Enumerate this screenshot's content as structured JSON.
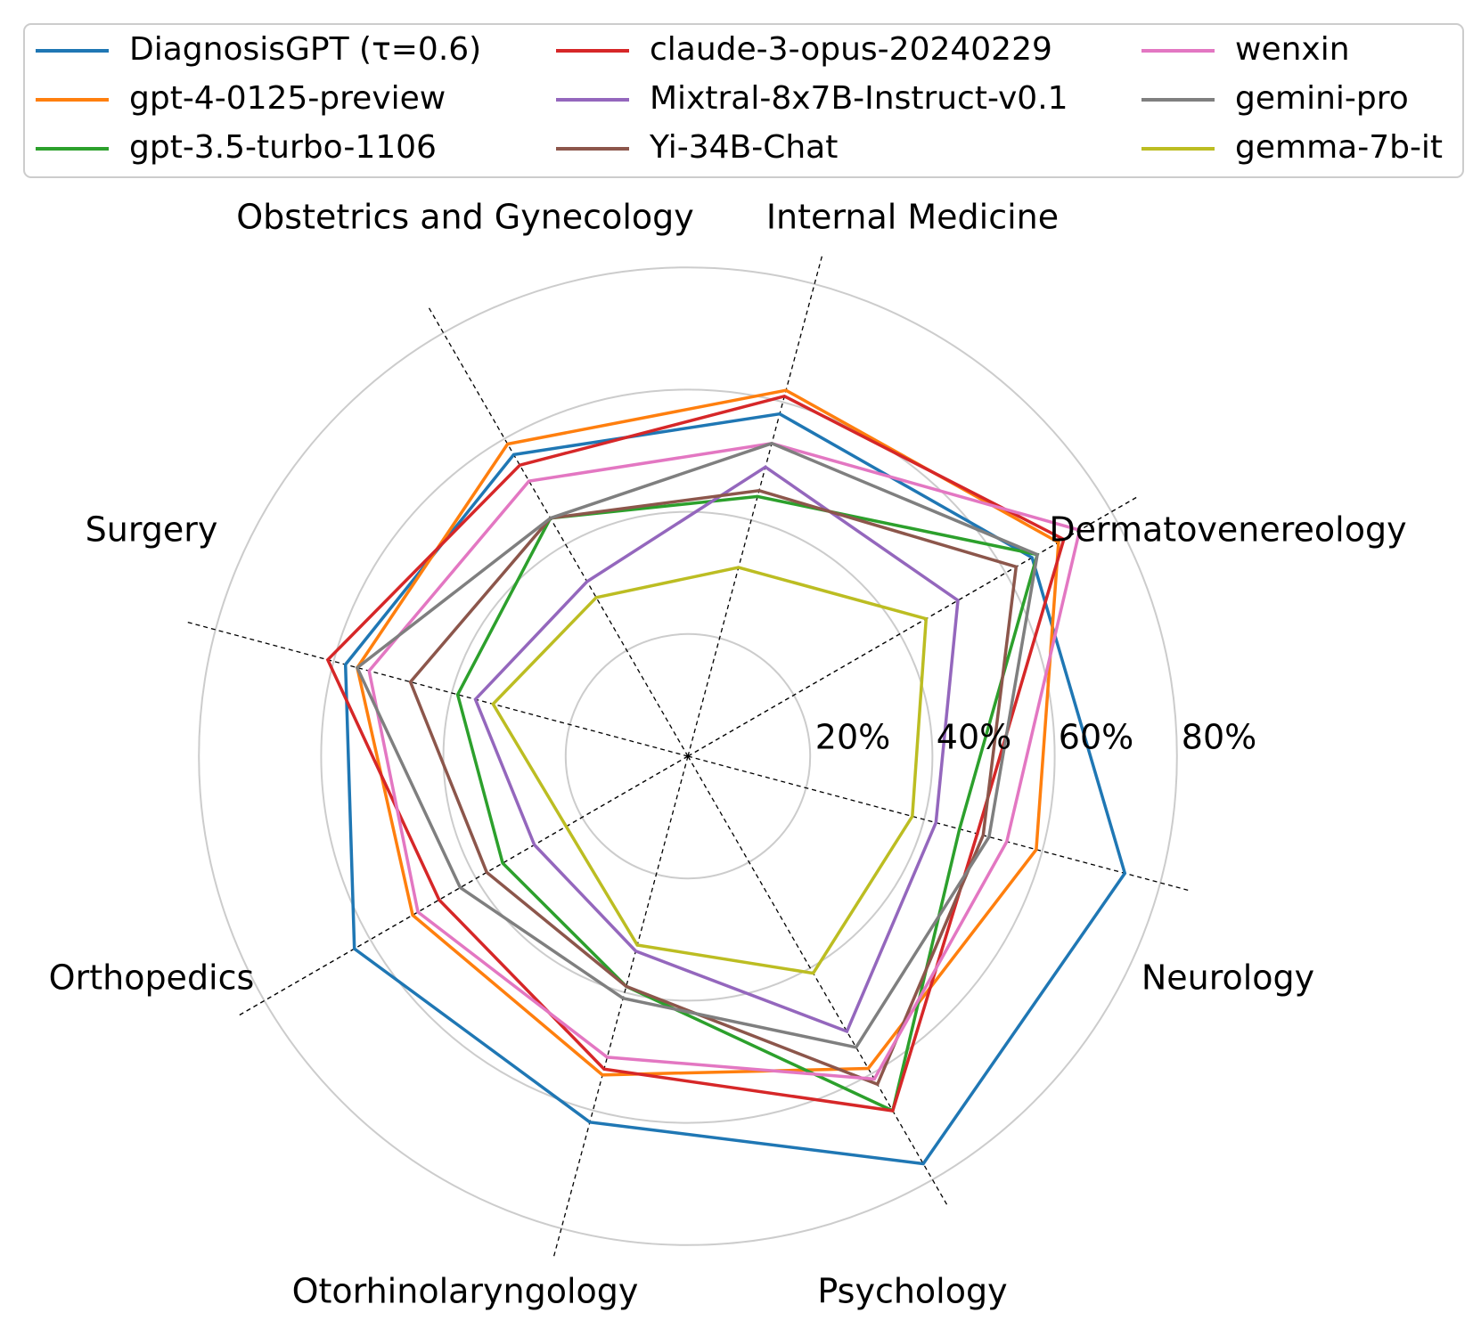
{
  "chart_data": {
    "type": "radar",
    "title": "",
    "axes": [
      "Dermatovenereology",
      "Internal Medicine",
      "Obstetrics and Gynecology",
      "Surgery",
      "Orthopedics",
      "Otorhinolaryngology",
      "Psychology",
      "Neurology"
    ],
    "radial_ticks": [
      20,
      40,
      60,
      80
    ],
    "radial_tick_labels": [
      "20%",
      "40%",
      "60%",
      "80%"
    ],
    "rlim": [
      0,
      80
    ],
    "grid": true,
    "legend_position": "top",
    "legend_columns": 3,
    "series": [
      {
        "name": "DiagnosisGPT (τ=0.6)",
        "color": "#1f77b4",
        "values": [
          65,
          58,
          57,
          58,
          63,
          62,
          77,
          74
        ]
      },
      {
        "name": "gpt-4-0125-preview",
        "color": "#ff7f0e",
        "values": [
          70,
          62,
          59,
          56,
          52,
          54,
          59,
          59
        ]
      },
      {
        "name": "gpt-3.5-turbo-1106",
        "color": "#2ca02c",
        "values": [
          66,
          44,
          45,
          39,
          35,
          39,
          67,
          46
        ]
      },
      {
        "name": "claude-3-opus-20240229",
        "color": "#d62728",
        "values": [
          71,
          61,
          55,
          61,
          47,
          53,
          67,
          49
        ]
      },
      {
        "name": "Mixtral-8x7B-Instruct-v0.1",
        "color": "#9467bd",
        "values": [
          51,
          49,
          33,
          36,
          29,
          33,
          52,
          42
        ]
      },
      {
        "name": "Yi-34B-Chat",
        "color": "#8c564b",
        "values": [
          62,
          45,
          45,
          47,
          38,
          39,
          62,
          50
        ]
      },
      {
        "name": "wenxin",
        "color": "#e377c2",
        "values": [
          74,
          53,
          52,
          54,
          51,
          51,
          61,
          54
        ]
      },
      {
        "name": "gemini-pro",
        "color": "#7f7f7f",
        "values": [
          66,
          53,
          45,
          56,
          43,
          41,
          55,
          51
        ]
      },
      {
        "name": "gemma-7b-it",
        "color": "#bcbd22",
        "values": [
          45,
          32,
          30,
          33,
          23,
          32,
          41,
          38
        ]
      }
    ]
  }
}
